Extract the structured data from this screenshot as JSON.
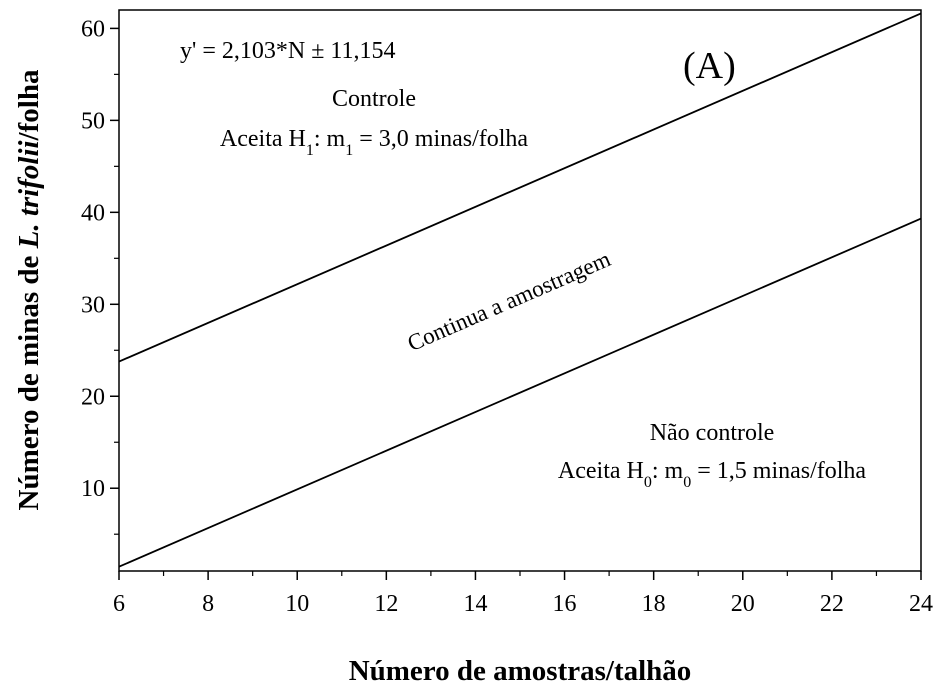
{
  "chart_data": {
    "type": "line",
    "x": [
      6,
      24
    ],
    "series": [
      {
        "color": "#000000",
        "values": [
          23.772,
          61.626
        ]
      },
      {
        "color": "#000000",
        "values": [
          1.464,
          39.318
        ]
      }
    ],
    "xlim": [
      6,
      24
    ],
    "xticks": [
      6,
      8,
      10,
      12,
      14,
      16,
      18,
      20,
      22,
      24
    ],
    "ylim": [
      1,
      62
    ],
    "yticks": [
      10,
      20,
      30,
      40,
      50,
      60
    ],
    "xlabel": "Número de amostras/talhão",
    "ylabel": [
      "Número de minas de ",
      "L. trifolii",
      "/folha"
    ],
    "equation": "y' = 2,103*N ± 11,154",
    "panel": "(A)",
    "upper_region": {
      "title": "Controle",
      "rule": [
        "Aceita H",
        "1",
        ": m",
        "1",
        " = 3,0 minas/folha"
      ]
    },
    "middle_region": "Continua a amostragem",
    "lower_region": {
      "title": "Não controle",
      "rule": [
        "Aceita H",
        "0",
        ": m",
        "0",
        " = 1,5 minas/folha"
      ]
    }
  }
}
